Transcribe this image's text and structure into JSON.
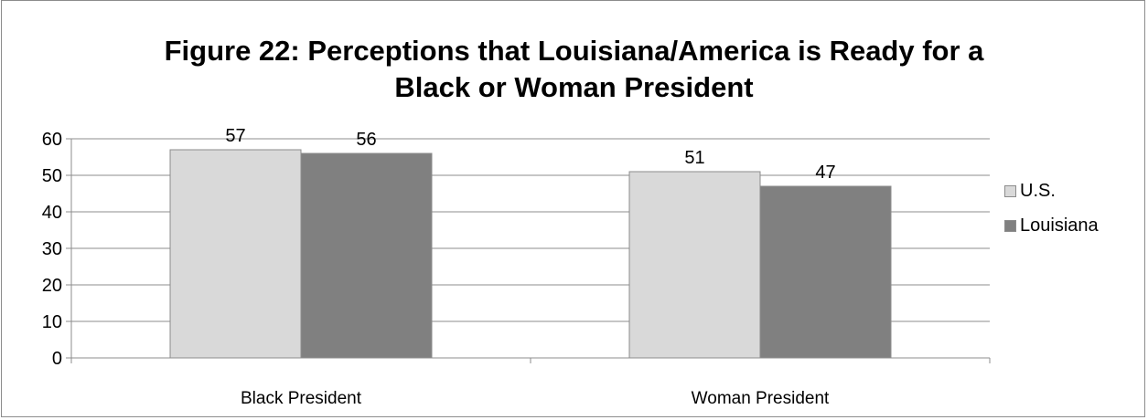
{
  "chart_data": {
    "type": "bar",
    "title_lines": [
      "Figure 22: Perceptions that Louisiana/America is Ready for a",
      "Black or Woman President"
    ],
    "categories": [
      "Black President",
      "Woman President"
    ],
    "series": [
      {
        "name": "U.S.",
        "values": [
          57,
          51
        ],
        "color": "#d9d9d9"
      },
      {
        "name": "Louisiana",
        "values": [
          56,
          47
        ],
        "color": "#808080"
      }
    ],
    "ylim": [
      0,
      60
    ],
    "yticks": [
      0,
      10,
      20,
      30,
      40,
      50,
      60
    ],
    "grid": true,
    "legend_position": "right"
  }
}
